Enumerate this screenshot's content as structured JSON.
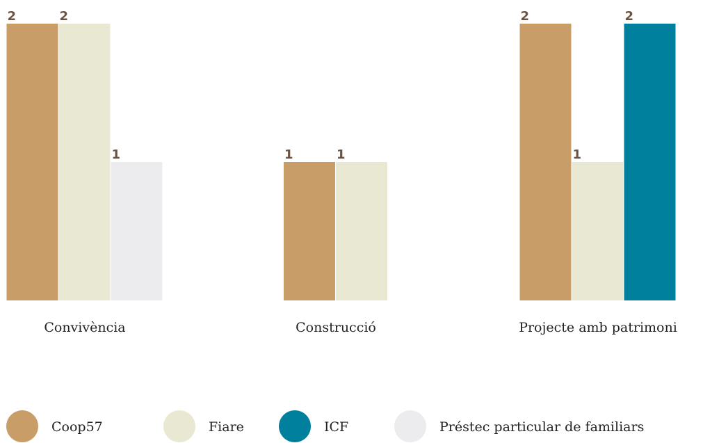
{
  "chart_data": {
    "type": "bar",
    "categories": [
      "Convivència",
      "Construcció",
      "Projecte amb patrimoni"
    ],
    "series": [
      {
        "name": "Coop57",
        "color": "#c99d68",
        "values": [
          2,
          1,
          2
        ]
      },
      {
        "name": "Fiare",
        "color": "#e9e9d3",
        "values": [
          2,
          1,
          1
        ]
      },
      {
        "name": "ICF",
        "color": "#00809d",
        "values": [
          null,
          null,
          2
        ]
      },
      {
        "name": "Préstec particular de familiars",
        "color": "#ececee",
        "values": [
          1,
          null,
          null
        ]
      }
    ],
    "ylim": [
      0,
      2
    ],
    "grid": false,
    "legend": "bottom"
  }
}
